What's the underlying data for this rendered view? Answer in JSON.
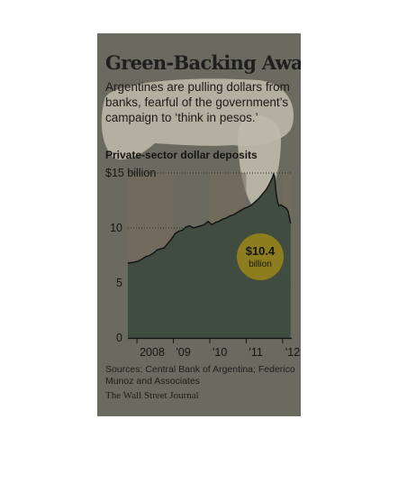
{
  "headline": "Green-Backing Away",
  "subhead": "Argentines are pulling dollars from banks, fearful of the government’s campaign to ‘think in pesos.’",
  "source_note": "Sources: Central Bank of Argentina; Federico Munoz and Associates",
  "credit": "The Wall Street Journal",
  "colors": {
    "card": "#6b6a60",
    "area": "#3f4c3f",
    "highlight": "#bdb8aa",
    "line": "#111111",
    "callout": "#8d7d1e",
    "year_band": "#7a6a5c"
  },
  "chart_data": {
    "type": "area",
    "title": "Private-sector dollar deposits",
    "unit_label": "$15 billion",
    "ylim": [
      0,
      15
    ],
    "y_ticks": [
      {
        "value": 0,
        "label": "0"
      },
      {
        "value": 5,
        "label": "5"
      },
      {
        "value": 10,
        "label": "10"
      },
      {
        "value": 15,
        "label": "$15 billion"
      }
    ],
    "xlim": [
      2007.75,
      2012.25
    ],
    "x_ticks": [
      {
        "value": 2008,
        "label": "2008"
      },
      {
        "value": 2009,
        "label": "'09"
      },
      {
        "value": 2010,
        "label": "'10"
      },
      {
        "value": 2011,
        "label": "'11"
      },
      {
        "value": 2012,
        "label": "'12"
      }
    ],
    "grid": true,
    "series": [
      {
        "x": [
          2007.75,
          2007.85,
          2007.95,
          2008.05,
          2008.15,
          2008.25,
          2008.35,
          2008.45,
          2008.55,
          2008.65,
          2008.75,
          2008.85,
          2008.95,
          2009.05,
          2009.15,
          2009.25,
          2009.35,
          2009.45,
          2009.55,
          2009.65,
          2009.75,
          2009.85,
          2009.95,
          2010.05,
          2010.15,
          2010.25,
          2010.35,
          2010.45,
          2010.55,
          2010.65,
          2010.75,
          2010.85,
          2010.95,
          2011.05,
          2011.15,
          2011.25,
          2011.35,
          2011.45,
          2011.55,
          2011.62,
          2011.68,
          2011.72,
          2011.75,
          2011.78,
          2011.82,
          2011.86,
          2011.9,
          2011.95,
          2012.0,
          2012.05,
          2012.1,
          2012.15,
          2012.22
        ],
        "values": [
          6.8,
          6.85,
          6.9,
          7.0,
          7.2,
          7.4,
          7.5,
          7.7,
          8.0,
          8.1,
          8.2,
          8.6,
          9.0,
          9.5,
          9.7,
          9.8,
          10.1,
          10.2,
          10.0,
          10.1,
          10.2,
          10.3,
          10.6,
          10.3,
          10.5,
          10.6,
          10.8,
          10.9,
          11.1,
          11.2,
          11.4,
          11.6,
          11.8,
          11.9,
          12.1,
          12.4,
          12.7,
          13.1,
          13.5,
          13.9,
          14.3,
          14.6,
          14.9,
          14.7,
          13.2,
          12.4,
          12.0,
          12.1,
          12.0,
          11.9,
          11.8,
          11.5,
          10.4
        ]
      }
    ],
    "callout": {
      "value": "$10.4",
      "unit": "billion"
    }
  }
}
